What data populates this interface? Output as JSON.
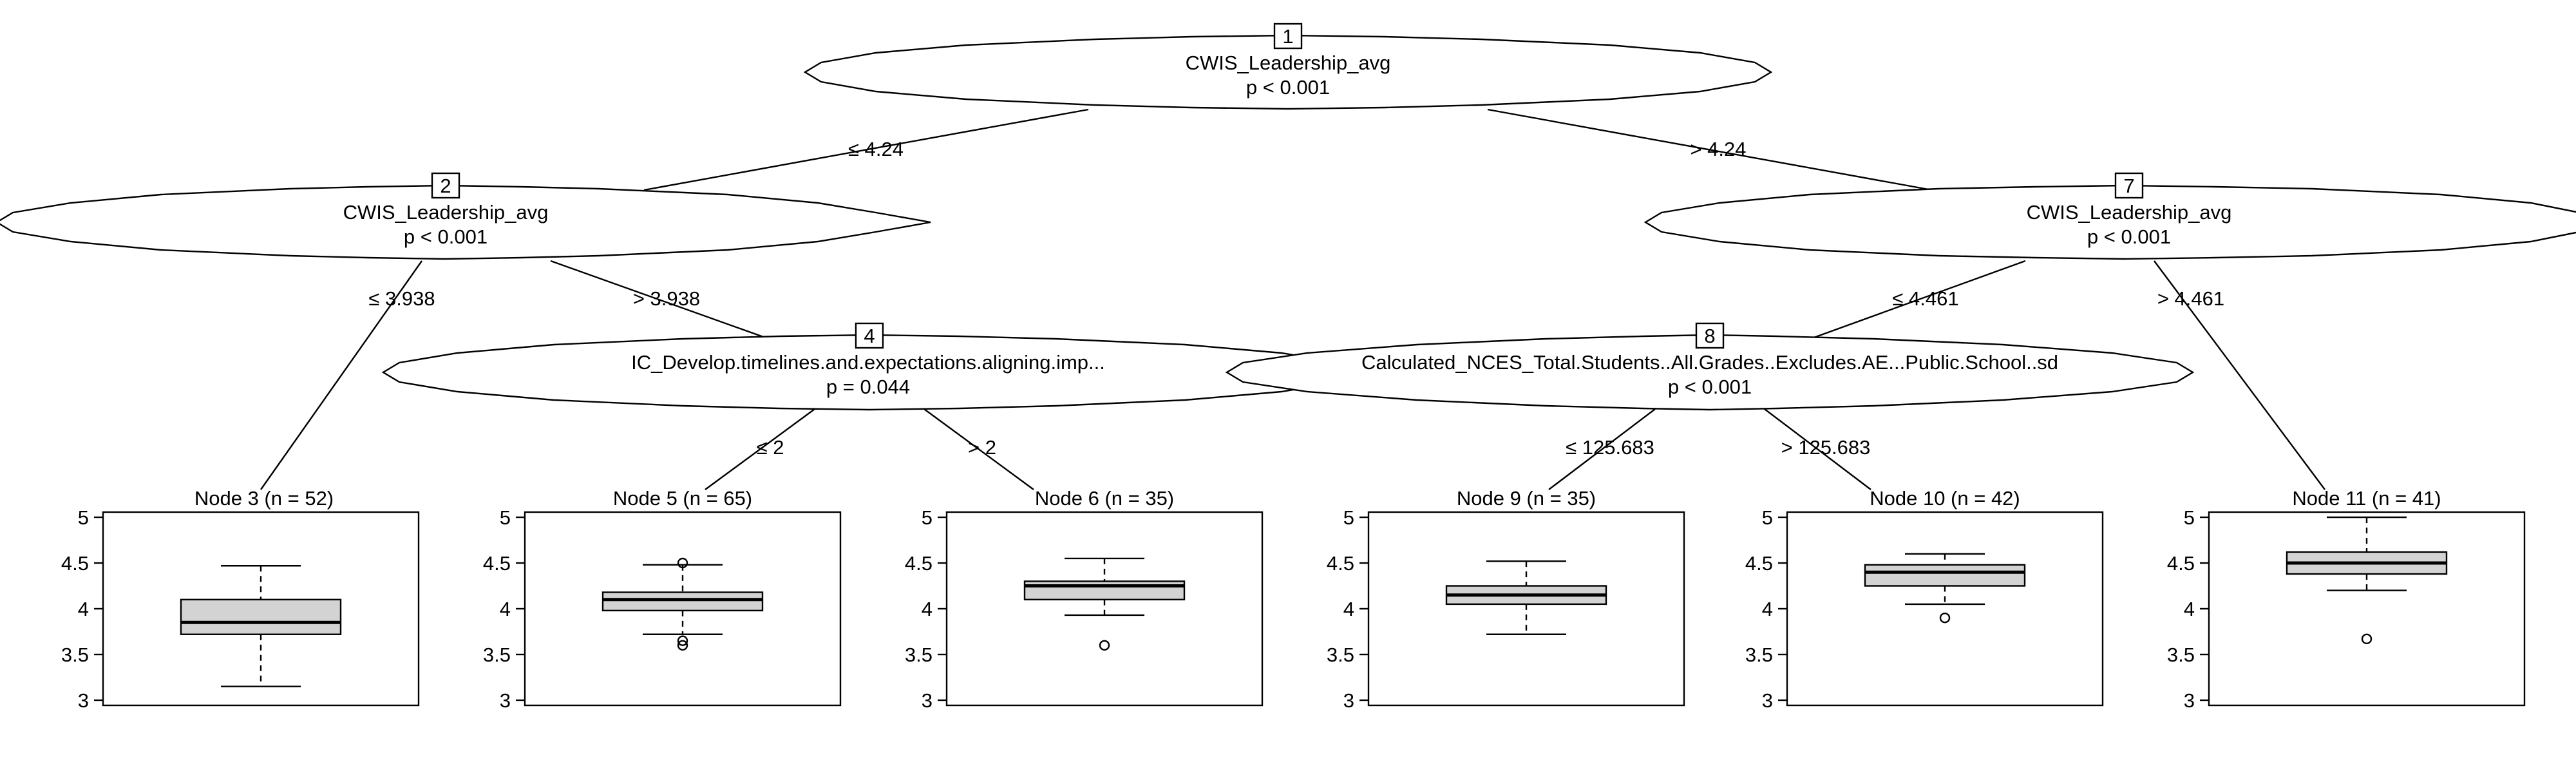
{
  "inner_nodes": [
    {
      "id": "1",
      "variable": "CWIS_Leadership_avg",
      "p": "p < 0.001"
    },
    {
      "id": "2",
      "variable": "CWIS_Leadership_avg",
      "p": "p < 0.001"
    },
    {
      "id": "4",
      "variable": "IC_Develop.timelines.and.expectations.aligning.imp...",
      "p": "p = 0.044"
    },
    {
      "id": "7",
      "variable": "CWIS_Leadership_avg",
      "p": "p < 0.001"
    },
    {
      "id": "8",
      "variable": "Calculated_NCES_Total.Students..All.Grades..Excludes.AE...Public.School..sd",
      "p": "p < 0.001"
    }
  ],
  "edges": [
    {
      "from": "1",
      "to": "2",
      "label": "≤ 4.24"
    },
    {
      "from": "1",
      "to": "7",
      "label": "> 4.24"
    },
    {
      "from": "2",
      "to": "3",
      "label": "≤ 3.938"
    },
    {
      "from": "2",
      "to": "4",
      "label": "> 3.938"
    },
    {
      "from": "4",
      "to": "5",
      "label": "≤ 2"
    },
    {
      "from": "4",
      "to": "6",
      "label": "> 2"
    },
    {
      "from": "7",
      "to": "8",
      "label": "≤ 4.461"
    },
    {
      "from": "7",
      "to": "11",
      "label": "> 4.461"
    },
    {
      "from": "8",
      "to": "9",
      "label": "≤ 125.683"
    },
    {
      "from": "8",
      "to": "10",
      "label": "> 125.683"
    }
  ],
  "terminal_nodes": [
    {
      "id": "3",
      "title": "Node 3 (n = 52)",
      "min": 3.15,
      "q1": 3.72,
      "median": 3.85,
      "q3": 4.1,
      "max": 4.47,
      "outliers": []
    },
    {
      "id": "5",
      "title": "Node 5 (n = 65)",
      "min": 3.72,
      "q1": 3.98,
      "median": 4.1,
      "q3": 4.18,
      "max": 4.48,
      "outliers": [
        4.5,
        3.65,
        3.6
      ]
    },
    {
      "id": "6",
      "title": "Node 6 (n = 35)",
      "min": 3.93,
      "q1": 4.1,
      "median": 4.25,
      "q3": 4.3,
      "max": 4.55,
      "outliers": [
        3.6
      ]
    },
    {
      "id": "9",
      "title": "Node 9 (n = 35)",
      "min": 3.72,
      "q1": 4.05,
      "median": 4.15,
      "q3": 4.25,
      "max": 4.52,
      "outliers": []
    },
    {
      "id": "10",
      "title": "Node 10 (n = 42)",
      "min": 4.05,
      "q1": 4.25,
      "median": 4.4,
      "q3": 4.48,
      "max": 4.6,
      "outliers": [
        3.9
      ]
    },
    {
      "id": "11",
      "title": "Node 11 (n = 41)",
      "min": 4.2,
      "q1": 4.38,
      "median": 4.5,
      "q3": 4.62,
      "max": 5.0,
      "outliers": [
        3.67
      ]
    }
  ],
  "y_axis": {
    "min": 3,
    "max": 5,
    "ticks": [
      "3",
      "3.5",
      "4",
      "4.5",
      "5"
    ]
  }
}
